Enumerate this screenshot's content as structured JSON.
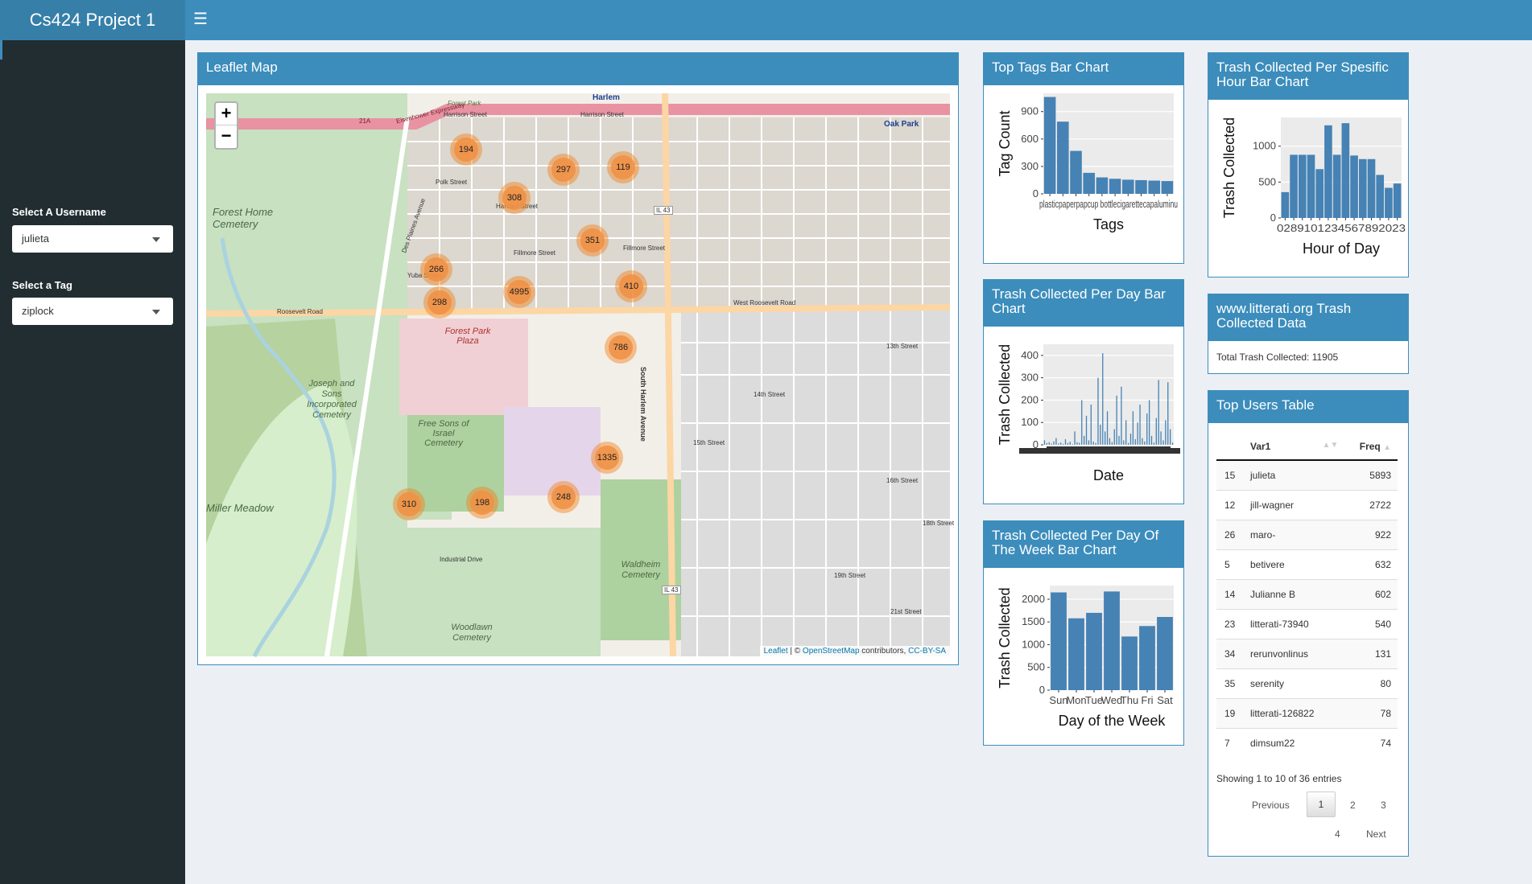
{
  "header": {
    "app_title": "Cs424 Project 1"
  },
  "sidebar": {
    "username_label": "Select A Username",
    "username_value": "julieta",
    "tag_label": "Select a Tag",
    "tag_value": "ziplock"
  },
  "map_box": {
    "title": "Leaflet Map",
    "zoom_in": "+",
    "zoom_out": "−",
    "attribution_leaflet": "Leaflet",
    "attribution_sep": " | © ",
    "attribution_osm": "OpenStreetMap",
    "attribution_contrib": " contributors, ",
    "attribution_license": "CC-BY-SA",
    "clusters": [
      "194",
      "297",
      "119",
      "308",
      "351",
      "266",
      "4995",
      "410",
      "298",
      "786",
      "1335",
      "248",
      "310",
      "198"
    ],
    "labels": [
      "Harlem",
      "Forest Park",
      "Oak Park",
      "Harrison Street",
      "Harrison Street",
      "Polk Street",
      "Harvard Street",
      "Fillmore Street",
      "Fillmore Street",
      "Yuba Street",
      "Roosevelt Road",
      "West Roosevelt Road",
      "Forest Home Cemetery",
      "Forest Park Plaza",
      "Joseph and Sons Incorporated Cemetery",
      "Free Sons of Israel Cemetery",
      "Miller Meadow",
      "Waldheim Cemetery",
      "Woodlawn Cemetery",
      "Industrial Drive",
      "South Harlem Avenue",
      "13th Street",
      "14th Street",
      "15th Street",
      "16th Street",
      "18th Street",
      "19th Street",
      "21st Street",
      "IL 43",
      "IL 43",
      "21A",
      "Eisenhower Expressway",
      "Des Plaines Avenue"
    ]
  },
  "tags_chart": {
    "title": "Top Tags Bar Chart",
    "chart_data": {
      "type": "bar",
      "xlabel": "Tags",
      "ylabel": "Tag Count",
      "yticks": [
        "0",
        "300",
        "600",
        "900"
      ],
      "ylim": [
        0,
        1100
      ],
      "x_tick_text": "plasticpaperpapcup bottlecigarettecapaluminu",
      "values": [
        1060,
        790,
        470,
        230,
        180,
        165,
        155,
        150,
        145,
        140
      ]
    }
  },
  "hour_chart": {
    "title": "Trash Collected Per Spesific Hour Bar Chart",
    "chart_data": {
      "type": "bar",
      "xlabel": "Hour of Day",
      "ylabel": "Trash Collected",
      "yticks": [
        "0",
        "500",
        "1000"
      ],
      "ylim": [
        0,
        1400
      ],
      "x_tick_text": "0289101234567892023",
      "values": [
        360,
        880,
        880,
        880,
        680,
        1290,
        880,
        1320,
        870,
        820,
        820,
        600,
        420,
        480
      ]
    }
  },
  "day_chart": {
    "title": "Trash Collected Per Day Bar Chart",
    "chart_data": {
      "type": "bar",
      "xlabel": "Date",
      "ylabel": "Trash Collected",
      "yticks": [
        "0",
        "100",
        "200",
        "300",
        "400"
      ],
      "ylim": [
        0,
        450
      ],
      "values": [
        20,
        8,
        12,
        5,
        15,
        30,
        6,
        10,
        4,
        25,
        8,
        14,
        3,
        60,
        12,
        9,
        200,
        40,
        130,
        20,
        180,
        15,
        8,
        300,
        90,
        410,
        60,
        150,
        30,
        12,
        70,
        220,
        40,
        260,
        20,
        110,
        8,
        50,
        150,
        25,
        100,
        180,
        30,
        15,
        140,
        200,
        40,
        10,
        120,
        290,
        60,
        20,
        110,
        280,
        70,
        10
      ]
    }
  },
  "week_chart": {
    "title": "Trash Collected Per Day Of The Week Bar Chart",
    "chart_data": {
      "type": "bar",
      "xlabel": "Day of the Week",
      "ylabel": "Trash Collected",
      "yticks": [
        "0",
        "500",
        "1000",
        "1500",
        "2000"
      ],
      "ylim": [
        0,
        2300
      ],
      "categories": [
        "Sun",
        "Mon",
        "Tue",
        "Wed",
        "Thu",
        "Fri",
        "Sat"
      ],
      "values": [
        2150,
        1580,
        1700,
        2170,
        1180,
        1410,
        1610
      ]
    }
  },
  "total_box": {
    "title": "www.litterati.org Trash Collected Data",
    "total_text": "Total Trash Collected: 11905"
  },
  "users_table": {
    "title": "Top Users Table",
    "col_var": "Var1",
    "col_freq": "Freq",
    "rows": [
      {
        "idx": "15",
        "name": "julieta",
        "freq": "5893"
      },
      {
        "idx": "12",
        "name": "jill-wagner",
        "freq": "2722"
      },
      {
        "idx": "26",
        "name": "maro-",
        "freq": "922"
      },
      {
        "idx": "5",
        "name": "betivere",
        "freq": "632"
      },
      {
        "idx": "14",
        "name": "Julianne B",
        "freq": "602"
      },
      {
        "idx": "23",
        "name": "litterati-73940",
        "freq": "540"
      },
      {
        "idx": "34",
        "name": "rerunvonlinus",
        "freq": "131"
      },
      {
        "idx": "35",
        "name": "serenity",
        "freq": "80"
      },
      {
        "idx": "19",
        "name": "litterati-126822",
        "freq": "78"
      },
      {
        "idx": "7",
        "name": "dimsum22",
        "freq": "74"
      }
    ],
    "info": "Showing 1 to 10 of 36 entries",
    "prev": "Previous",
    "pages": [
      "1",
      "2",
      "3",
      "4"
    ],
    "next": "Next"
  },
  "colors": {
    "header": "#3c8dbc",
    "logo_bg": "#367fa9",
    "sidebar": "#222d32",
    "bar": "#4682b4",
    "cluster": "#f0913f"
  }
}
